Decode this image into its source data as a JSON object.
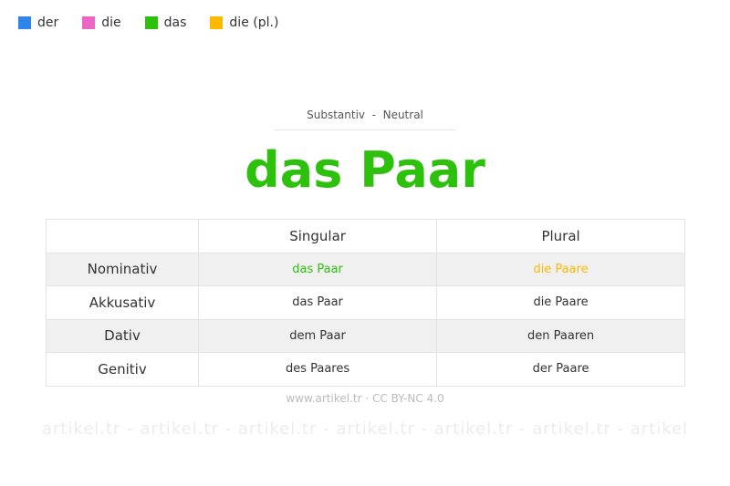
{
  "legend": [
    {
      "label": "der",
      "color": "#2f86e8"
    },
    {
      "label": "die",
      "color": "#ee66c4"
    },
    {
      "label": "das",
      "color": "#2dc10d"
    },
    {
      "label": "die (pl.)",
      "color": "#fdb900"
    }
  ],
  "watermark": "artikel.tr - artikel.tr - artikel.tr - artikel.tr - artikel.tr - artikel.tr - artikel",
  "subtitle": "Substantiv  -  Neutral",
  "title": "das Paar",
  "table": {
    "headers": [
      "",
      "Singular",
      "Plural"
    ],
    "rows": [
      [
        "Nominativ",
        "das Paar",
        "die Paare"
      ],
      [
        "Akkusativ",
        "das Paar",
        "die Paare"
      ],
      [
        "Dativ",
        "dem Paar",
        "den Paaren"
      ],
      [
        "Genitiv",
        "des Paares",
        "der Paare"
      ]
    ]
  },
  "footer": "www.artikel.tr · CC BY-NC 4.0"
}
